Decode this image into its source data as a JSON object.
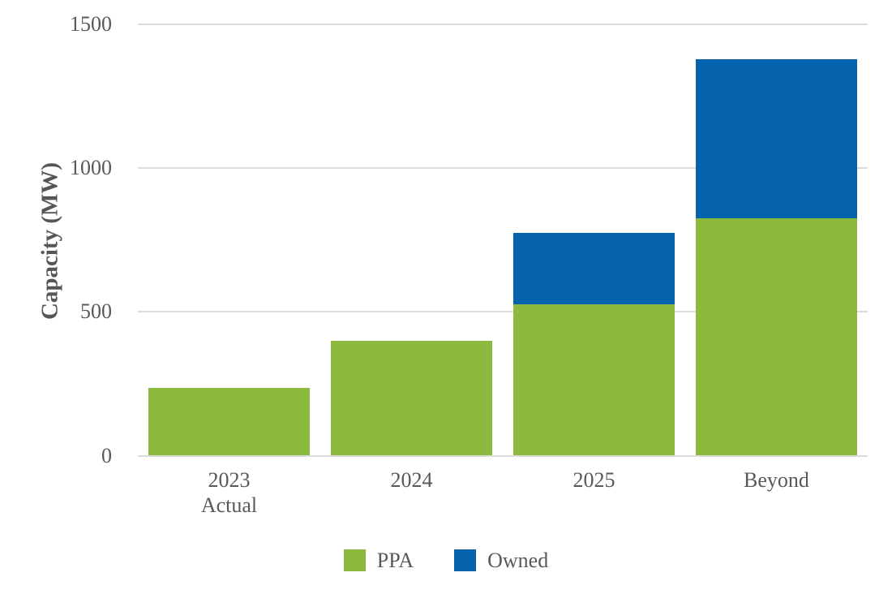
{
  "chart_data": {
    "type": "bar",
    "stacked": true,
    "title": "",
    "xlabel": "",
    "ylabel": "Capacity (MW)",
    "categories": [
      [
        "2023",
        "Actual"
      ],
      [
        "2024"
      ],
      [
        "2025"
      ],
      [
        "Beyond"
      ]
    ],
    "series": [
      {
        "name": "PPA",
        "color": "#8CBA3F",
        "values": [
          235,
          400,
          525,
          825
        ]
      },
      {
        "name": "Owned",
        "color": "#0562AD",
        "values": [
          0,
          0,
          250,
          555
        ]
      }
    ],
    "ylim": [
      0,
      1500
    ],
    "yticks": [
      "0",
      "500",
      "1000",
      "1500"
    ],
    "ytick_values": [
      0,
      500,
      1000,
      1500
    ],
    "grid": true,
    "legend_position": "bottom",
    "legend_items": [
      {
        "label": "PPA",
        "color": "#8CBA3F"
      },
      {
        "label": "Owned",
        "color": "#0562AD"
      }
    ]
  },
  "colors": {
    "background": "#FFFFFF",
    "gridline": "#DCDCDC",
    "tick_text": "#595959",
    "axis_title_text": "#565656",
    "ppa_green": "#8CBA3F",
    "owned_blue": "#0562AD"
  }
}
